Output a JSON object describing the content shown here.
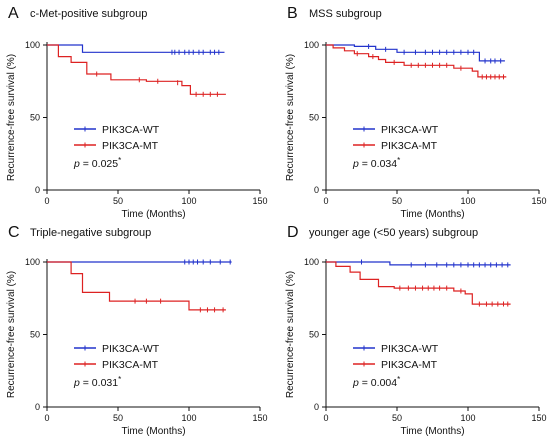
{
  "figure": {
    "panels": [
      {
        "letter": "A",
        "title": "c-Met-positive subgroup",
        "p_prefix": "p",
        "p_value": " = 0.025",
        "p_star": "*"
      },
      {
        "letter": "B",
        "title": "MSS subgroup",
        "p_prefix": "p",
        "p_value": " = 0.034",
        "p_star": "*"
      },
      {
        "letter": "C",
        "title": "Triple-negative subgroup",
        "p_prefix": "p",
        "p_value": " = 0.031",
        "p_star": "*"
      },
      {
        "letter": "D",
        "title": "younger age (<50 years) subgroup",
        "p_prefix": "p",
        "p_value": " = 0.004",
        "p_star": "*"
      }
    ]
  },
  "chart_data": [
    {
      "type": "line",
      "title": "c-Met-positive subgroup",
      "xlabel": "Time (Months)",
      "ylabel": "Recurrence-free survival (%)",
      "xlim": [
        0,
        150
      ],
      "ylim": [
        0,
        100
      ],
      "xticks": [
        0,
        50,
        100,
        150
      ],
      "yticks": [
        0,
        50,
        100
      ],
      "legend_position": "lower-left",
      "series": [
        {
          "name": "PIK3CA-WT",
          "color": "#2233cc",
          "step": true,
          "points": [
            [
              0,
              100
            ],
            [
              25,
              100
            ],
            [
              25,
              95
            ],
            [
              125,
              95
            ]
          ],
          "censored": [
            [
              88,
              95
            ],
            [
              90,
              95
            ],
            [
              93,
              95
            ],
            [
              97,
              95
            ],
            [
              100,
              95
            ],
            [
              103,
              95
            ],
            [
              107,
              95
            ],
            [
              110,
              95
            ],
            [
              115,
              95
            ],
            [
              118,
              95
            ],
            [
              121,
              95
            ]
          ]
        },
        {
          "name": "PIK3CA-MT",
          "color": "#dd2222",
          "step": true,
          "points": [
            [
              0,
              100
            ],
            [
              8,
              100
            ],
            [
              8,
              92
            ],
            [
              17,
              92
            ],
            [
              17,
              88
            ],
            [
              28,
              88
            ],
            [
              28,
              80
            ],
            [
              45,
              80
            ],
            [
              45,
              76
            ],
            [
              70,
              76
            ],
            [
              70,
              75
            ],
            [
              95,
              75
            ],
            [
              95,
              72
            ],
            [
              101,
              72
            ],
            [
              101,
              66
            ],
            [
              126,
              66
            ]
          ],
          "censored": [
            [
              35,
              80
            ],
            [
              65,
              76
            ],
            [
              78,
              75
            ],
            [
              92,
              74
            ],
            [
              105,
              66
            ],
            [
              110,
              66
            ],
            [
              115,
              66
            ],
            [
              120,
              66
            ]
          ]
        }
      ]
    },
    {
      "type": "line",
      "title": "MSS subgroup",
      "xlabel": "Time (Months)",
      "ylabel": "Recurrence-free survival (%)",
      "xlim": [
        0,
        150
      ],
      "ylim": [
        0,
        100
      ],
      "xticks": [
        0,
        50,
        100,
        150
      ],
      "yticks": [
        0,
        50,
        100
      ],
      "legend_position": "lower-left",
      "series": [
        {
          "name": "PIK3CA-WT",
          "color": "#2233cc",
          "step": true,
          "points": [
            [
              0,
              100
            ],
            [
              20,
              100
            ],
            [
              20,
              99
            ],
            [
              35,
              99
            ],
            [
              35,
              97
            ],
            [
              50,
              97
            ],
            [
              50,
              95
            ],
            [
              108,
              95
            ],
            [
              108,
              89
            ],
            [
              126,
              89
            ]
          ],
          "censored": [
            [
              30,
              99
            ],
            [
              42,
              97
            ],
            [
              55,
              95
            ],
            [
              63,
              95
            ],
            [
              70,
              95
            ],
            [
              75,
              95
            ],
            [
              80,
              95
            ],
            [
              85,
              95
            ],
            [
              90,
              95
            ],
            [
              95,
              95
            ],
            [
              100,
              95
            ],
            [
              104,
              95
            ],
            [
              112,
              89
            ],
            [
              116,
              89
            ],
            [
              119,
              89
            ],
            [
              123,
              89
            ]
          ]
        },
        {
          "name": "PIK3CA-MT",
          "color": "#dd2222",
          "step": true,
          "points": [
            [
              0,
              100
            ],
            [
              5,
              100
            ],
            [
              5,
              98
            ],
            [
              13,
              98
            ],
            [
              13,
              96
            ],
            [
              20,
              96
            ],
            [
              20,
              94
            ],
            [
              30,
              94
            ],
            [
              30,
              92
            ],
            [
              37,
              92
            ],
            [
              37,
              90
            ],
            [
              42,
              90
            ],
            [
              42,
              88
            ],
            [
              55,
              88
            ],
            [
              55,
              86
            ],
            [
              90,
              86
            ],
            [
              90,
              84
            ],
            [
              103,
              84
            ],
            [
              103,
              82
            ],
            [
              107,
              82
            ],
            [
              107,
              78
            ],
            [
              127,
              78
            ]
          ],
          "censored": [
            [
              22,
              94
            ],
            [
              33,
              92
            ],
            [
              48,
              88
            ],
            [
              60,
              86
            ],
            [
              65,
              86
            ],
            [
              70,
              86
            ],
            [
              75,
              86
            ],
            [
              80,
              86
            ],
            [
              85,
              86
            ],
            [
              95,
              84
            ],
            [
              110,
              78
            ],
            [
              113,
              78
            ],
            [
              116,
              78
            ],
            [
              119,
              78
            ],
            [
              122,
              78
            ],
            [
              125,
              78
            ]
          ]
        }
      ]
    },
    {
      "type": "line",
      "title": "Triple-negative subgroup",
      "xlabel": "Time (Months)",
      "ylabel": "Recurrence-free survival (%)",
      "xlim": [
        0,
        150
      ],
      "ylim": [
        0,
        100
      ],
      "xticks": [
        0,
        50,
        100,
        150
      ],
      "yticks": [
        0,
        50,
        100
      ],
      "legend_position": "lower-left",
      "series": [
        {
          "name": "PIK3CA-WT",
          "color": "#2233cc",
          "step": true,
          "points": [
            [
              0,
              100
            ],
            [
              130,
              100
            ]
          ],
          "censored": [
            [
              97,
              100
            ],
            [
              100,
              100
            ],
            [
              103,
              100
            ],
            [
              106,
              100
            ],
            [
              110,
              100
            ],
            [
              115,
              100
            ],
            [
              122,
              100
            ],
            [
              129,
              100
            ]
          ]
        },
        {
          "name": "PIK3CA-MT",
          "color": "#dd2222",
          "step": true,
          "points": [
            [
              0,
              100
            ],
            [
              17,
              100
            ],
            [
              17,
              92
            ],
            [
              25,
              92
            ],
            [
              25,
              79
            ],
            [
              44,
              79
            ],
            [
              44,
              73
            ],
            [
              100,
              73
            ],
            [
              100,
              67
            ],
            [
              126,
              67
            ]
          ],
          "censored": [
            [
              62,
              73
            ],
            [
              70,
              73
            ],
            [
              80,
              73
            ],
            [
              108,
              67
            ],
            [
              113,
              67
            ],
            [
              118,
              67
            ],
            [
              124,
              67
            ]
          ]
        }
      ]
    },
    {
      "type": "line",
      "title": "younger age (<50 years) subgroup",
      "xlabel": "Time (Months)",
      "ylabel": "Recurrence-free survival (%)",
      "xlim": [
        0,
        150
      ],
      "ylim": [
        0,
        100
      ],
      "xticks": [
        0,
        50,
        100,
        150
      ],
      "yticks": [
        0,
        50,
        100
      ],
      "legend_position": "lower-left",
      "series": [
        {
          "name": "PIK3CA-WT",
          "color": "#2233cc",
          "step": true,
          "points": [
            [
              0,
              100
            ],
            [
              45,
              100
            ],
            [
              45,
              98
            ],
            [
              130,
              98
            ]
          ],
          "censored": [
            [
              25,
              100
            ],
            [
              60,
              98
            ],
            [
              70,
              98
            ],
            [
              78,
              98
            ],
            [
              85,
              98
            ],
            [
              90,
              98
            ],
            [
              95,
              98
            ],
            [
              100,
              98
            ],
            [
              104,
              98
            ],
            [
              108,
              98
            ],
            [
              112,
              98
            ],
            [
              116,
              98
            ],
            [
              120,
              98
            ],
            [
              124,
              98
            ],
            [
              128,
              98
            ]
          ]
        },
        {
          "name": "PIK3CA-MT",
          "color": "#dd2222",
          "step": true,
          "points": [
            [
              0,
              100
            ],
            [
              7,
              100
            ],
            [
              7,
              97
            ],
            [
              17,
              97
            ],
            [
              17,
              93
            ],
            [
              24,
              93
            ],
            [
              24,
              88
            ],
            [
              37,
              88
            ],
            [
              37,
              83
            ],
            [
              48,
              83
            ],
            [
              48,
              82
            ],
            [
              90,
              82
            ],
            [
              90,
              80
            ],
            [
              98,
              80
            ],
            [
              98,
              78
            ],
            [
              103,
              78
            ],
            [
              103,
              71
            ],
            [
              130,
              71
            ]
          ],
          "censored": [
            [
              52,
              82
            ],
            [
              58,
              82
            ],
            [
              63,
              82
            ],
            [
              68,
              82
            ],
            [
              72,
              82
            ],
            [
              76,
              82
            ],
            [
              80,
              82
            ],
            [
              85,
              82
            ],
            [
              95,
              80
            ],
            [
              108,
              71
            ],
            [
              113,
              71
            ],
            [
              117,
              71
            ],
            [
              121,
              71
            ],
            [
              125,
              71
            ],
            [
              128,
              71
            ]
          ]
        }
      ]
    }
  ]
}
